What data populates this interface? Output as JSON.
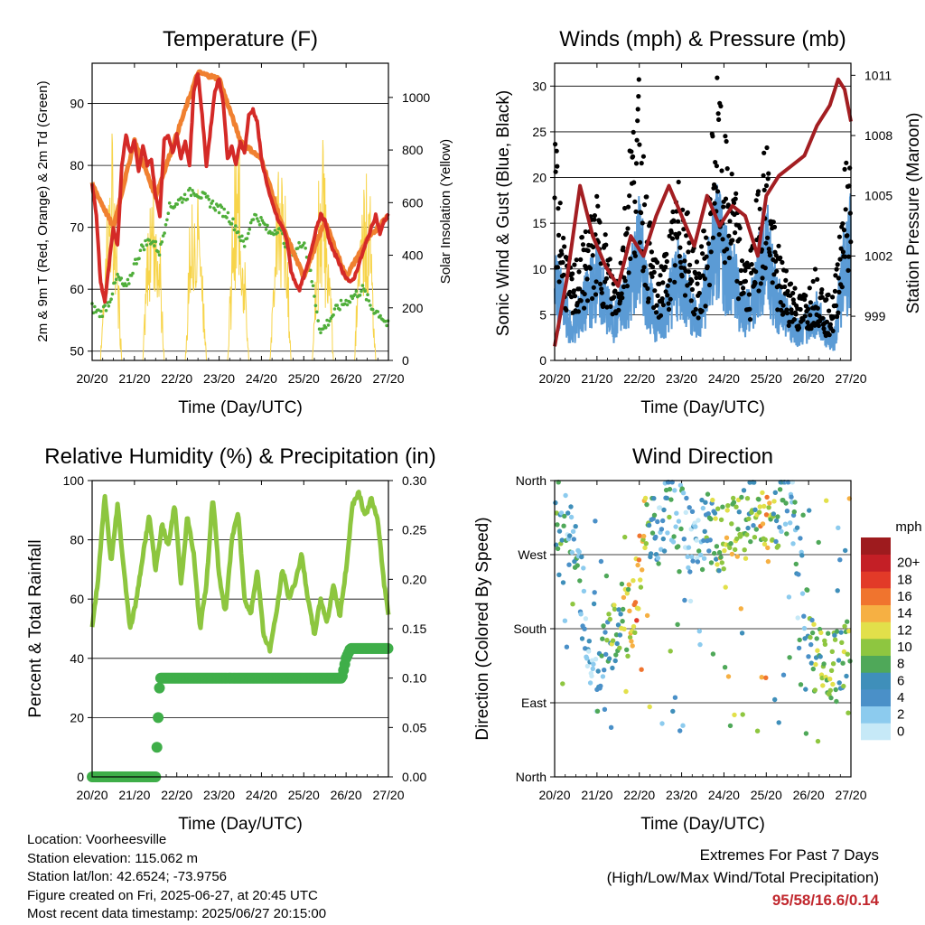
{
  "chart_data": [
    {
      "type": "line",
      "title": "Temperature (F)",
      "xlabel": "Time (Day/UTC)",
      "ylabel": "2m & 9m T (Red, Orange) & 2m Td (Green)",
      "ylabel_right": "Solar Insolation (Yellow)",
      "x_ticks": [
        "20/20",
        "21/20",
        "22/20",
        "23/20",
        "24/20",
        "25/20",
        "26/20",
        "27/20"
      ],
      "y_ticks": [
        50,
        60,
        70,
        80,
        90
      ],
      "y_right_ticks": [
        0,
        200,
        400,
        600,
        800,
        1000
      ],
      "ylim": [
        48.5,
        96.5
      ],
      "y_right_lim": [
        0,
        1130
      ],
      "grid": true,
      "colors": {
        "t2m": "#d42a27",
        "t9m": "#f08030",
        "td": "#4fae3a",
        "solar": "#f7d44a"
      },
      "series": [
        {
          "key": "t2m",
          "x": [
            0,
            0.1,
            0.2,
            0.3,
            0.4,
            0.5,
            0.6,
            0.7,
            0.8,
            0.9,
            1.0,
            1.1,
            1.2,
            1.3,
            1.4,
            1.5,
            1.6,
            1.7,
            1.8,
            1.9,
            2.0,
            2.1,
            2.2,
            2.3,
            2.4,
            2.5,
            2.6,
            2.7,
            2.8,
            2.9,
            3.0,
            3.1,
            3.2,
            3.3,
            3.4,
            3.5,
            3.6,
            3.7,
            3.8,
            3.9,
            4.0,
            4.1,
            4.2,
            4.3,
            4.4,
            4.5,
            4.6,
            4.7,
            4.8,
            4.9,
            5.0,
            5.1,
            5.2,
            5.3,
            5.4,
            5.5,
            5.6,
            5.7,
            5.8,
            5.9,
            6.0,
            6.1,
            6.2,
            6.3,
            6.4,
            6.5,
            6.6,
            6.7,
            6.8,
            6.9,
            7.0
          ],
          "y": [
            77,
            72,
            61,
            58,
            64,
            70,
            67,
            80,
            85,
            82,
            84,
            79,
            83,
            80,
            81,
            75,
            72,
            84,
            85,
            82,
            85,
            81,
            84,
            80,
            92,
            95,
            88,
            80,
            86,
            92,
            94,
            90,
            81,
            83,
            80,
            84,
            82,
            88,
            89,
            87,
            81,
            78,
            75,
            73,
            71,
            70,
            68,
            63,
            61,
            60,
            62,
            64,
            67,
            70,
            72,
            71,
            68,
            66,
            65,
            63,
            62,
            61,
            62,
            64,
            66,
            68,
            70,
            72,
            69,
            71,
            72
          ]
        },
        {
          "key": "t9m",
          "x": [
            0,
            0.5,
            1.0,
            1.5,
            2.0,
            2.5,
            3.0,
            3.5,
            4.0,
            4.5,
            5.0,
            5.5,
            6.0,
            6.5,
            7.0
          ],
          "y": [
            77,
            70,
            84,
            75,
            85,
            95,
            94,
            84,
            81,
            70,
            62,
            71,
            62,
            68,
            72
          ]
        },
        {
          "key": "td",
          "x": [
            0,
            0.2,
            0.4,
            0.6,
            0.8,
            1.0,
            1.2,
            1.4,
            1.6,
            1.8,
            2.0,
            2.2,
            2.4,
            2.6,
            2.8,
            3.0,
            3.2,
            3.4,
            3.6,
            3.8,
            4.0,
            4.2,
            4.4,
            4.6,
            4.8,
            5.0,
            5.2,
            5.4,
            5.6,
            5.8,
            6.0,
            6.2,
            6.4,
            6.6,
            6.8,
            7.0
          ],
          "y": [
            57,
            56,
            58,
            62,
            60,
            64,
            67,
            68,
            66,
            73,
            74,
            75,
            76,
            75,
            74,
            73,
            72,
            70,
            67,
            72,
            71,
            69,
            70,
            67,
            66,
            68,
            61,
            53,
            55,
            57,
            58,
            59,
            60,
            57,
            56,
            54
          ]
        },
        {
          "key": "solar",
          "x": [
            0.4,
            0.55,
            0.75,
            0.95,
            1.1,
            1.4,
            1.55,
            1.8,
            1.95,
            2.1,
            2.4,
            2.55,
            2.75,
            2.95,
            3.1,
            3.4,
            3.55,
            3.75,
            3.95,
            4.1,
            4.4,
            4.55,
            4.75,
            4.95,
            5.1,
            5.4,
            5.55,
            5.75,
            5.95,
            6.1,
            6.4,
            6.55,
            6.75,
            6.95
          ],
          "y": [
            0,
            400,
            980,
            500,
            0,
            0,
            600,
            1140,
            400,
            0,
            0,
            500,
            700,
            300,
            0,
            0,
            600,
            980,
            500,
            0,
            0,
            550,
            900,
            300,
            0,
            0,
            450,
            650,
            200,
            0,
            0,
            300,
            850,
            400
          ]
        }
      ]
    },
    {
      "type": "scatter",
      "title": "Winds (mph) & Pressure (mb)",
      "xlabel": "Time (Day/UTC)",
      "ylabel": "Sonic Wind & Gust (Blue, Black)",
      "ylabel_right": "Station Pressure (Maroon)",
      "x_ticks": [
        "20/20",
        "21/20",
        "22/20",
        "23/20",
        "24/20",
        "25/20",
        "26/20",
        "27/20"
      ],
      "y_ticks": [
        0,
        5,
        10,
        15,
        20,
        25,
        30
      ],
      "y_right_ticks": [
        999,
        1002,
        1005,
        1008,
        1011
      ],
      "ylim": [
        0,
        32.5
      ],
      "y_right_lim": [
        996.8,
        1011.6
      ],
      "grid": true,
      "colors": {
        "wind": "#5b9bd5",
        "gust": "#000000",
        "pressure": "#a31e22"
      },
      "series": [
        {
          "key": "wind",
          "x": [
            0,
            0.2,
            0.4,
            0.6,
            0.8,
            1.0,
            1.2,
            1.4,
            1.6,
            1.8,
            2.0,
            2.2,
            2.4,
            2.6,
            2.8,
            3.0,
            3.2,
            3.4,
            3.6,
            3.8,
            4.0,
            4.2,
            4.4,
            4.6,
            4.8,
            5.0,
            5.2,
            5.4,
            5.6,
            5.8,
            6.0,
            6.2,
            6.4,
            6.6,
            6.8,
            7.0
          ],
          "y": [
            8,
            6,
            3,
            5,
            7,
            9,
            6,
            4,
            6,
            8,
            12,
            7,
            4,
            5,
            8,
            9,
            6,
            4,
            8,
            13,
            11,
            9,
            6,
            5,
            9,
            12,
            7,
            5,
            4,
            3,
            4,
            5,
            3,
            2,
            9,
            12
          ]
        },
        {
          "key": "gust",
          "x": [
            0,
            0.2,
            0.4,
            0.6,
            0.8,
            1.0,
            1.2,
            1.4,
            1.6,
            1.8,
            2.0,
            2.2,
            2.4,
            2.6,
            2.8,
            3.0,
            3.2,
            3.4,
            3.6,
            3.8,
            4.0,
            4.2,
            4.4,
            4.6,
            4.8,
            5.0,
            5.2,
            5.4,
            5.6,
            5.8,
            6.0,
            6.2,
            6.4,
            6.6,
            6.8,
            7.0
          ],
          "y": [
            22,
            13,
            8,
            11,
            13,
            15,
            12,
            8,
            12,
            22,
            26,
            14,
            9,
            10,
            14,
            18,
            12,
            9,
            14,
            27,
            21,
            18,
            12,
            9,
            16,
            22,
            12,
            9,
            8,
            6,
            7,
            9,
            6,
            6,
            17,
            21
          ]
        },
        {
          "key": "pressure",
          "x": [
            0,
            0.3,
            0.6,
            0.9,
            1.2,
            1.5,
            1.8,
            2.1,
            2.4,
            2.7,
            3.0,
            3.3,
            3.6,
            3.9,
            4.2,
            4.5,
            4.8,
            5.0,
            5.3,
            5.6,
            5.9,
            6.2,
            6.5,
            6.7,
            6.85,
            7.0
          ],
          "y": [
            997.5,
            1001,
            1005.5,
            1003,
            1001.5,
            1000.5,
            1003,
            1002,
            1004,
            1005.5,
            1004,
            1002.5,
            1005,
            1003.5,
            1004.5,
            1004,
            1002,
            1005,
            1006,
            1006.5,
            1007,
            1008.5,
            1009.5,
            1010.8,
            1010.3,
            1008.7
          ]
        }
      ]
    },
    {
      "type": "line",
      "title": "Relative Humidity (%) & Precipitation (in)",
      "xlabel": "Time (Day/UTC)",
      "ylabel": "Percent & Total Rainfall",
      "x_ticks": [
        "20/20",
        "21/20",
        "22/20",
        "23/20",
        "24/20",
        "25/20",
        "26/20",
        "27/20"
      ],
      "y_ticks": [
        0,
        20,
        40,
        60,
        80,
        100
      ],
      "y_right_ticks": [
        "0.00",
        "0.05",
        "0.10",
        "0.15",
        "0.20",
        "0.25",
        "0.30"
      ],
      "ylim": [
        0,
        100
      ],
      "y_right_lim": [
        0,
        0.3
      ],
      "grid": true,
      "colors": {
        "rh": "#8dc63f",
        "precip": "#3fae49"
      },
      "series": [
        {
          "key": "rh",
          "x": [
            0,
            0.15,
            0.3,
            0.45,
            0.6,
            0.75,
            0.9,
            1.05,
            1.2,
            1.35,
            1.5,
            1.65,
            1.8,
            1.95,
            2.1,
            2.25,
            2.4,
            2.55,
            2.7,
            2.85,
            3.0,
            3.15,
            3.3,
            3.45,
            3.6,
            3.75,
            3.9,
            4.05,
            4.2,
            4.35,
            4.5,
            4.65,
            4.8,
            4.95,
            5.1,
            5.25,
            5.4,
            5.55,
            5.7,
            5.85,
            6.0,
            6.15,
            6.3,
            6.45,
            6.6,
            6.75,
            6.9,
            7.0
          ],
          "y": [
            50,
            68,
            95,
            72,
            92,
            70,
            50,
            60,
            75,
            88,
            70,
            85,
            78,
            92,
            65,
            88,
            75,
            50,
            65,
            95,
            68,
            55,
            80,
            90,
            60,
            55,
            70,
            48,
            43,
            55,
            70,
            60,
            66,
            75,
            60,
            48,
            60,
            52,
            65,
            54,
            70,
            92,
            96,
            88,
            94,
            86,
            65,
            55
          ]
        },
        {
          "key": "precip",
          "x": [
            0,
            1.3,
            1.5,
            1.55,
            1.6,
            2.0,
            3.0,
            4.0,
            5.0,
            5.9,
            6.0,
            6.1,
            7.0
          ],
          "y": [
            0,
            0,
            0,
            0.05,
            0.1,
            0.1,
            0.1,
            0.1,
            0.1,
            0.1,
            0.12,
            0.13,
            0.13
          ]
        }
      ]
    },
    {
      "type": "scatter",
      "title": "Wind Direction",
      "xlabel": "Time (Day/UTC)",
      "ylabel": "Direction (Colored By Speed)",
      "x_ticks": [
        "20/20",
        "21/20",
        "22/20",
        "23/20",
        "24/20",
        "25/20",
        "26/20",
        "27/20"
      ],
      "y_ticks": [
        "North",
        "East",
        "South",
        "West",
        "North"
      ],
      "y_tick_degrees": [
        0,
        90,
        180,
        270,
        360
      ],
      "ylim": [
        0,
        360
      ],
      "grid": true,
      "legend": {
        "title": "mph",
        "placement": "right",
        "labels": [
          "0",
          "2",
          "4",
          "6",
          "8",
          "10",
          "12",
          "14",
          "16",
          "18",
          "20+"
        ],
        "colors": [
          "#c6e9f7",
          "#8ccbee",
          "#4a90c8",
          "#3f8fba",
          "#4fa859",
          "#8ec640",
          "#e2e04a",
          "#f6b043",
          "#f0742e",
          "#e23a28",
          "#c41f26",
          "#9e1b1e"
        ]
      },
      "series": [
        {
          "key": "direction",
          "x": [
            0.1,
            0.3,
            0.5,
            0.9,
            1.2,
            1.4,
            1.7,
            1.9,
            2.1,
            2.3,
            2.5,
            2.7,
            3.0,
            3.3,
            3.6,
            3.9,
            4.1,
            4.4,
            4.7,
            5.0,
            5.3,
            5.6,
            5.9,
            6.1,
            6.4,
            6.7,
            7.0
          ],
          "y": [
            320,
            300,
            290,
            100,
            160,
            170,
            185,
            210,
            300,
            305,
            300,
            330,
            320,
            270,
            310,
            290,
            300,
            295,
            330,
            300,
            320,
            330,
            200,
            150,
            130,
            140,
            150
          ],
          "speed": [
            8,
            4,
            6,
            2,
            6,
            8,
            10,
            14,
            12,
            8,
            4,
            6,
            4,
            2,
            6,
            10,
            12,
            10,
            8,
            14,
            6,
            4,
            4,
            8,
            10,
            6,
            12
          ]
        }
      ]
    }
  ],
  "info": {
    "location": "Location: Voorheesville",
    "elevation": "Station elevation: 115.062 m",
    "latlon": "Station lat/lon: 42.6524; -73.9756",
    "created": "Figure created on Fri, 2025-06-27, at 20:45 UTC",
    "recent": "Most recent data timestamp: 2025/06/27 20:15:00"
  },
  "extremes": {
    "line1": "Extremes For Past 7 Days",
    "line2": "(High/Low/Max Wind/Total Precipitation)",
    "values": "95/58/16.6/0.14"
  }
}
